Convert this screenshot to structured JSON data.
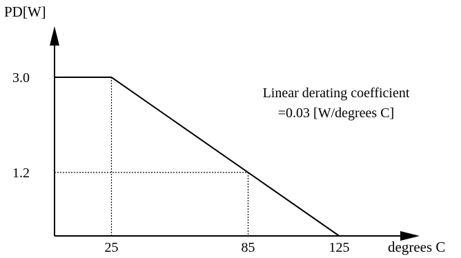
{
  "chart_data": {
    "type": "line",
    "ylabel": "PD[W]",
    "xlabel": "degrees C",
    "x": [
      0,
      25,
      125
    ],
    "y": [
      3.0,
      3.0,
      0
    ],
    "xlim": [
      0,
      135
    ],
    "ylim": [
      0,
      3.7
    ],
    "x_ticks": [
      25,
      85,
      125
    ],
    "x_tick_labels": [
      "25",
      "85",
      "125"
    ],
    "y_ticks": [
      3.0,
      1.2
    ],
    "y_tick_labels": [
      "3.0",
      "1.2"
    ],
    "guide_points": [
      {
        "x": 25,
        "y": 3.0
      },
      {
        "x": 85,
        "y": 1.2
      }
    ],
    "annotation": {
      "line1": "Linear derating coefficient",
      "line2": "=0.03 [W/degrees C]"
    },
    "grid": false,
    "legend": "none"
  }
}
